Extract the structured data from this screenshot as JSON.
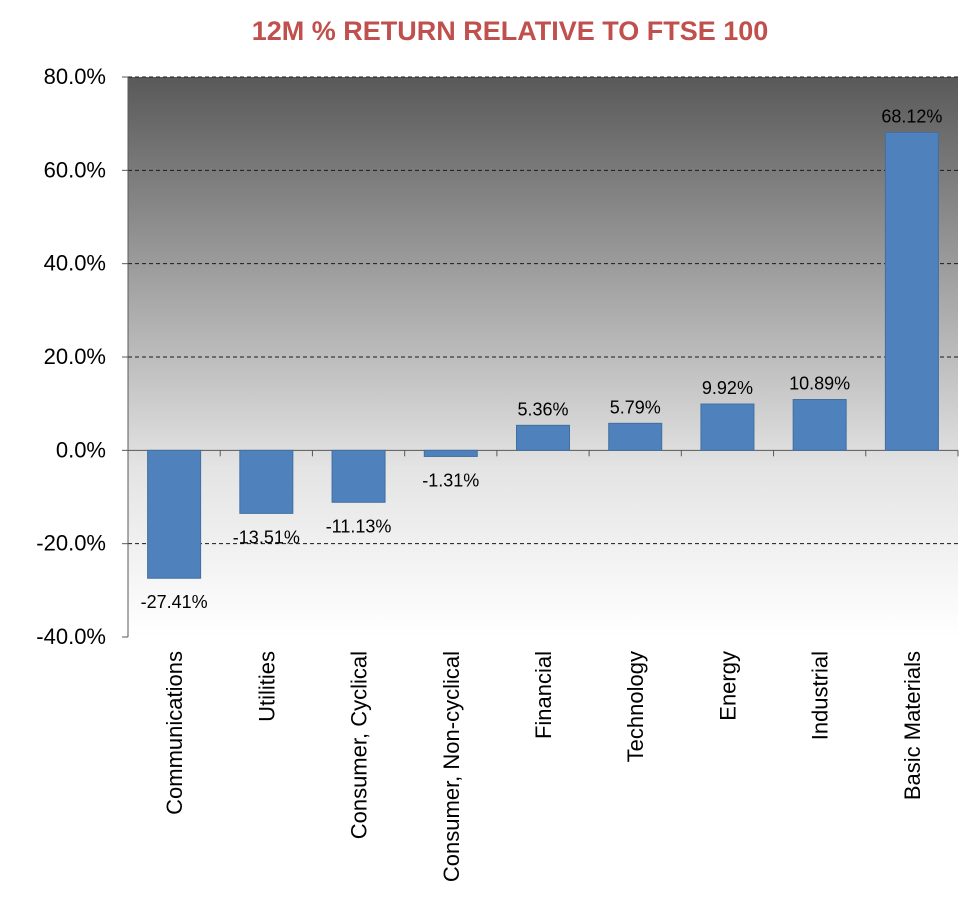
{
  "chart_data": {
    "type": "bar",
    "title": "12M % RETURN RELATIVE TO FTSE 100",
    "categories": [
      "Communications",
      "Utilities",
      "Consumer, Cyclical",
      "Consumer, Non-cyclical",
      "Financial",
      "Technology",
      "Energy",
      "Industrial",
      "Basic Materials"
    ],
    "values": [
      -27.41,
      -13.51,
      -11.13,
      -1.31,
      5.36,
      5.79,
      9.92,
      10.89,
      68.12
    ],
    "data_labels": [
      "-27.41%",
      "-13.51%",
      "-11.13%",
      "-1.31%",
      "5.36%",
      "5.79%",
      "9.92%",
      "10.89%",
      "68.12%"
    ],
    "y_ticks": [
      80,
      60,
      40,
      20,
      0,
      -20,
      -40
    ],
    "y_tick_labels": [
      "80.0%",
      "60.0%",
      "40.0%",
      "20.0%",
      "0.0%",
      "-20.0%",
      "-40.0%"
    ],
    "ylim": [
      -40,
      80
    ],
    "xlabel": "",
    "ylabel": "",
    "grid": true,
    "legend": false,
    "colors": {
      "bar": "#4f81bd",
      "bar_edge": "#41709f",
      "title": "#c0504d",
      "gridline": "#1a1a1a",
      "plot_bg_top": "#595959",
      "plot_bg_bottom": "#ffffff"
    }
  }
}
